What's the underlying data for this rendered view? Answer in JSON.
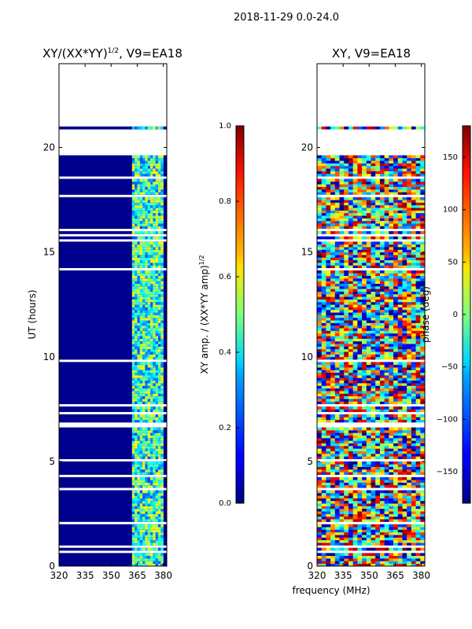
{
  "figure_title": "2018-11-29 0.0-24.0",
  "chart_data": [
    {
      "type": "heatmap",
      "title": "XY/(XX*YY)",
      "title_exp": "1/2",
      "title_suffix": ", V9=EA18",
      "xlabel": "",
      "ylabel": "UT (hours)",
      "xlim": [
        320,
        382
      ],
      "ylim": [
        0,
        24
      ],
      "xticks": [
        "320",
        "335",
        "350",
        "365",
        "380"
      ],
      "xtick_values": [
        320,
        335,
        350,
        365,
        380
      ],
      "yticks": [
        "0",
        "5",
        "10",
        "15",
        "20"
      ],
      "ytick_values": [
        0,
        5,
        10,
        15,
        20
      ],
      "colorbar": {
        "label": "XY amp. / (XX*YY amp)",
        "label_exp": "1/2",
        "range": [
          0.0,
          1.0
        ],
        "ticks": [
          "0.0",
          "0.2",
          "0.4",
          "0.6",
          "0.8",
          "1.0"
        ],
        "tick_values": [
          0.0,
          0.2,
          0.4,
          0.6,
          0.8,
          1.0
        ]
      },
      "flagged_utc_hours": [
        [
          21.0,
          22.3
        ],
        [
          19.7,
          20.8
        ],
        [
          22.35,
          24.0
        ]
      ],
      "active_band_mhz": [
        362,
        380
      ]
    },
    {
      "type": "heatmap",
      "title": "XY, V9=EA18",
      "xlabel": "frequency (MHz)",
      "ylabel": "",
      "xlim": [
        320,
        382
      ],
      "ylim": [
        0,
        24
      ],
      "xticks": [
        "320",
        "335",
        "350",
        "365",
        "380"
      ],
      "xtick_values": [
        320,
        335,
        350,
        365,
        380
      ],
      "yticks": [
        "0",
        "5",
        "10",
        "15",
        "20"
      ],
      "ytick_values": [
        0,
        5,
        10,
        15,
        20
      ],
      "colorbar": {
        "label": "phase (deg)",
        "range": [
          -180,
          180
        ],
        "ticks": [
          "−150",
          "−100",
          "−50",
          "0",
          "50",
          "100",
          "150"
        ],
        "tick_values": [
          -150,
          -100,
          -50,
          0,
          50,
          100,
          150
        ]
      }
    }
  ]
}
